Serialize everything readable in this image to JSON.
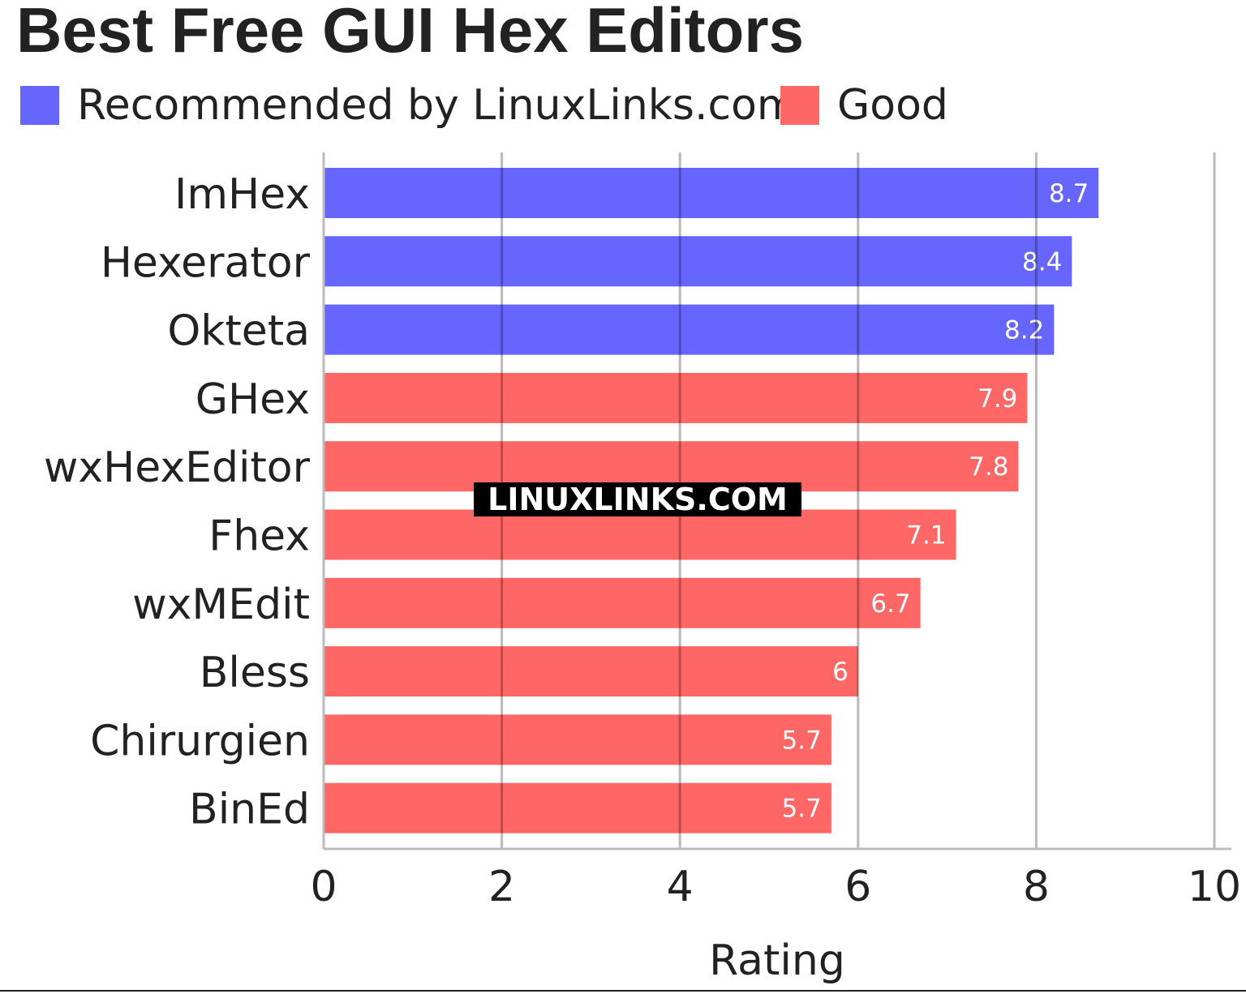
{
  "chart_data": {
    "type": "bar",
    "orientation": "horizontal",
    "title": "Best Free GUI Hex Editors",
    "xlabel": "Rating",
    "ylabel": "",
    "xlim": [
      0,
      10
    ],
    "xticks": [
      "0",
      "2",
      "4",
      "6",
      "8",
      "10"
    ],
    "grid": true,
    "legend_position": "top-left",
    "series": [
      {
        "name": "Recommended by LinuxLinks.com",
        "color": "#6666ff"
      },
      {
        "name": "Good",
        "color": "#ff6666"
      }
    ],
    "categories": [
      "ImHex",
      "Hexerator",
      "Okteta",
      "GHex",
      "wxHexEditor",
      "Fhex",
      "wxMEdit",
      "Bless",
      "Chirurgien",
      "BinEd"
    ],
    "values": [
      8.7,
      8.4,
      8.2,
      7.9,
      7.8,
      7.1,
      6.7,
      6,
      5.7,
      5.7
    ],
    "value_labels": [
      "8.7",
      "8.4",
      "8.2",
      "7.9",
      "7.8",
      "7.1",
      "6.7",
      "6",
      "5.7",
      "5.7"
    ],
    "series_index": [
      0,
      0,
      0,
      1,
      1,
      1,
      1,
      1,
      1,
      1
    ]
  },
  "watermark": "LINUXLINKS.COM"
}
